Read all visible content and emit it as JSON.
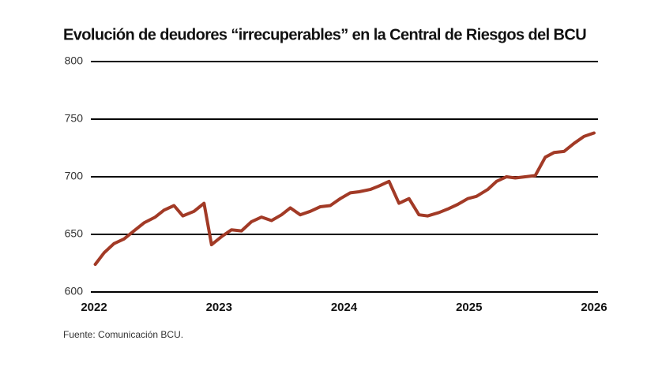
{
  "chart_data": {
    "type": "line",
    "title": "Evolución de deudores “irrecuperables” en la Central de Riesgos del BCU",
    "source": "Fuente: Comunicación BCU.",
    "x": [
      2022.01,
      2022.08,
      2022.16,
      2022.24,
      2022.32,
      2022.4,
      2022.49,
      2022.56,
      2022.64,
      2022.71,
      2022.8,
      2022.88,
      2022.94,
      2023.02,
      2023.1,
      2023.18,
      2023.26,
      2023.34,
      2023.42,
      2023.5,
      2023.57,
      2023.65,
      2023.73,
      2023.81,
      2023.89,
      2023.97,
      2024.05,
      2024.12,
      2024.21,
      2024.28,
      2024.36,
      2024.44,
      2024.52,
      2024.6,
      2024.67,
      2024.76,
      2024.83,
      2024.91,
      2024.99,
      2025.06,
      2025.15,
      2025.22,
      2025.3,
      2025.37,
      2025.45,
      2025.53,
      2025.61,
      2025.68,
      2025.76,
      2025.84,
      2025.92,
      2026.0
    ],
    "series": [
      {
        "color": "#a23a26",
        "values": [
          624,
          634,
          642,
          646,
          653,
          660,
          665,
          671,
          675,
          666,
          670,
          677,
          641,
          648,
          654,
          653,
          661,
          665,
          662,
          667,
          673,
          667,
          670,
          674,
          675,
          681,
          686,
          687,
          689,
          692,
          696,
          677,
          681,
          667,
          666,
          669,
          672,
          676,
          681,
          683,
          689,
          696,
          700,
          699,
          700,
          701,
          717,
          721,
          722,
          729,
          735,
          738
        ]
      }
    ],
    "xlim": [
      2022,
      2026
    ],
    "xticks": [
      2022,
      2023,
      2024,
      2025,
      2026
    ],
    "ylim": [
      600,
      800
    ],
    "yticks": [
      600,
      650,
      700,
      750,
      800
    ],
    "grid": true,
    "grid_color": "#000000"
  }
}
